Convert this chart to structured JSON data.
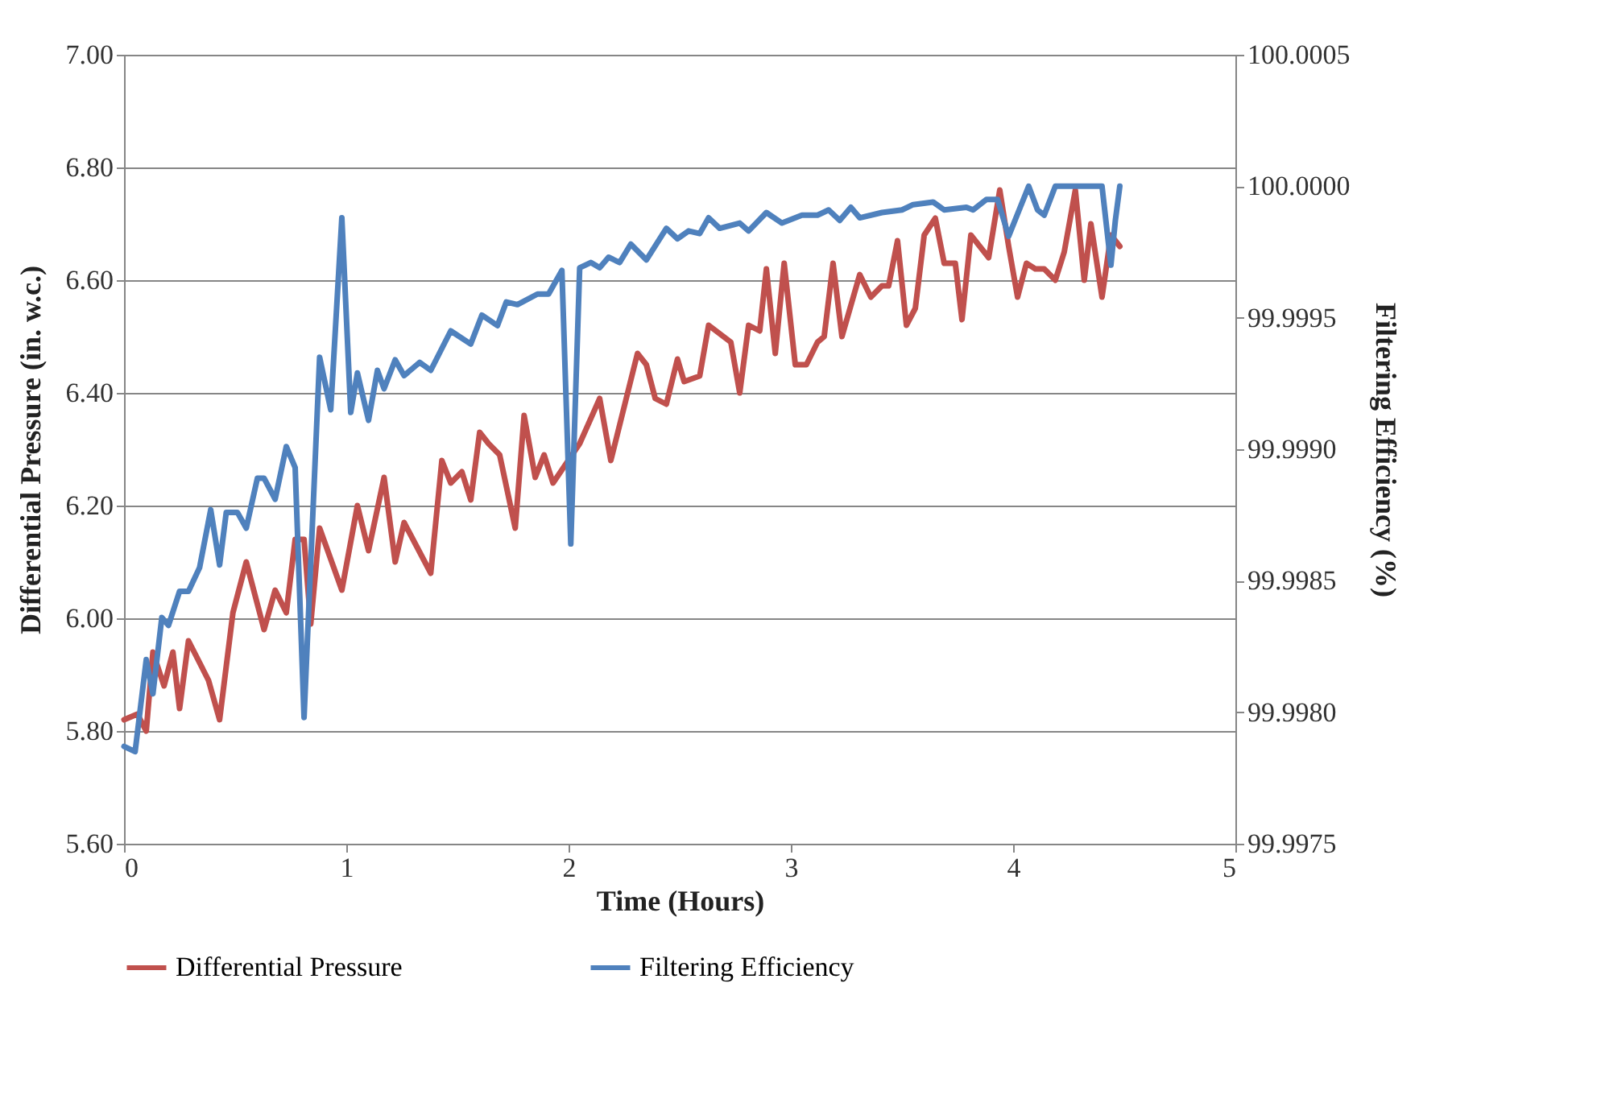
{
  "chart_data": {
    "type": "line",
    "xlabel": "Time (Hours)",
    "ylabel": "Differential Pressure (in. w.c.)",
    "y2label": "Filtering Efficiency (%)",
    "xlim": [
      0,
      5
    ],
    "xticks": [
      0,
      1,
      2,
      3,
      4,
      5
    ],
    "ylim": [
      5.6,
      7.0
    ],
    "yticks": [
      {
        "value": 5.6,
        "label": "5.60"
      },
      {
        "value": 5.8,
        "label": "5.80"
      },
      {
        "value": 6.0,
        "label": "6.00"
      },
      {
        "value": 6.2,
        "label": "6.20"
      },
      {
        "value": 6.4,
        "label": "6.40"
      },
      {
        "value": 6.6,
        "label": "6.60"
      },
      {
        "value": 6.8,
        "label": "6.80"
      },
      {
        "value": 7.0,
        "label": "7.00"
      }
    ],
    "y2lim": [
      99.9975,
      100.0005
    ],
    "y2ticks": [
      99.9975,
      {
        "value": 99.998,
        "label": "99.9980"
      },
      99.9985,
      {
        "value": 99.999,
        "label": "99.9990"
      },
      99.9995,
      {
        "value": 100.0,
        "label": "100.0000"
      },
      100.0005
    ],
    "grid": "y",
    "legend": "bottom",
    "series": [
      {
        "name": "Differential Pressure",
        "color": "#c0504d",
        "x": [
          0.0,
          0.06,
          0.1,
          0.13,
          0.18,
          0.22,
          0.25,
          0.29,
          0.38,
          0.43,
          0.49,
          0.55,
          0.63,
          0.68,
          0.73,
          0.77,
          0.81,
          0.84,
          0.88,
          0.98,
          1.05,
          1.1,
          1.17,
          1.22,
          1.26,
          1.38,
          1.43,
          1.47,
          1.52,
          1.56,
          1.6,
          1.64,
          1.69,
          1.76,
          1.8,
          1.85,
          1.89,
          1.93,
          2.05,
          2.14,
          2.19,
          2.31,
          2.35,
          2.39,
          2.44,
          2.49,
          2.52,
          2.59,
          2.63,
          2.73,
          2.77,
          2.81,
          2.86,
          2.89,
          2.93,
          2.97,
          3.02,
          3.07,
          3.12,
          3.15,
          3.19,
          3.23,
          3.31,
          3.36,
          3.41,
          3.44,
          3.48,
          3.52,
          3.56,
          3.6,
          3.65,
          3.69,
          3.74,
          3.77,
          3.81,
          3.85,
          3.89,
          3.94,
          3.98,
          4.02,
          4.06,
          4.1,
          4.14,
          4.19,
          4.23,
          4.28,
          4.32,
          4.35,
          4.4,
          4.44,
          4.48
        ],
        "values": [
          5.82,
          5.83,
          5.8,
          5.94,
          5.88,
          5.94,
          5.84,
          5.96,
          5.89,
          5.82,
          6.01,
          6.1,
          5.98,
          6.05,
          6.01,
          6.14,
          6.14,
          5.99,
          6.16,
          6.05,
          6.2,
          6.12,
          6.25,
          6.1,
          6.17,
          6.08,
          6.28,
          6.24,
          6.26,
          6.21,
          6.33,
          6.31,
          6.29,
          6.16,
          6.36,
          6.25,
          6.29,
          6.24,
          6.31,
          6.39,
          6.28,
          6.47,
          6.45,
          6.39,
          6.38,
          6.46,
          6.42,
          6.43,
          6.52,
          6.49,
          6.4,
          6.52,
          6.51,
          6.62,
          6.47,
          6.63,
          6.45,
          6.45,
          6.49,
          6.5,
          6.63,
          6.5,
          6.61,
          6.57,
          6.59,
          6.59,
          6.67,
          6.52,
          6.55,
          6.68,
          6.71,
          6.63,
          6.63,
          6.53,
          6.68,
          6.66,
          6.64,
          6.76,
          6.66,
          6.57,
          6.63,
          6.62,
          6.62,
          6.6,
          6.65,
          6.76,
          6.6,
          6.7,
          6.57,
          6.68,
          6.66
        ]
      },
      {
        "name": "Filtering Efficiency",
        "color": "#4f81bd",
        "axis": "y2",
        "x": [
          0.0,
          0.05,
          0.1,
          0.13,
          0.17,
          0.2,
          0.25,
          0.29,
          0.34,
          0.39,
          0.43,
          0.46,
          0.51,
          0.55,
          0.6,
          0.63,
          0.68,
          0.73,
          0.77,
          0.81,
          0.88,
          0.93,
          0.98,
          1.02,
          1.05,
          1.1,
          1.14,
          1.17,
          1.22,
          1.26,
          1.33,
          1.38,
          1.47,
          1.56,
          1.61,
          1.68,
          1.72,
          1.77,
          1.86,
          1.91,
          1.97,
          2.01,
          2.05,
          2.1,
          2.14,
          2.18,
          2.23,
          2.28,
          2.35,
          2.44,
          2.49,
          2.54,
          2.59,
          2.63,
          2.68,
          2.77,
          2.81,
          2.89,
          2.96,
          3.05,
          3.12,
          3.17,
          3.22,
          3.27,
          3.31,
          3.41,
          3.5,
          3.55,
          3.64,
          3.69,
          3.79,
          3.82,
          3.88,
          3.93,
          3.98,
          4.07,
          4.11,
          4.14,
          4.19,
          4.4,
          4.44,
          4.46,
          4.48
        ],
        "values": [
          99.99787,
          99.99785,
          99.9982,
          99.99807,
          99.99836,
          99.99833,
          99.99846,
          99.99846,
          99.99855,
          99.99877,
          99.99856,
          99.99876,
          99.99876,
          99.9987,
          99.99889,
          99.99889,
          99.99881,
          99.99901,
          99.99893,
          99.99798,
          99.99935,
          99.99915,
          99.99988,
          99.99914,
          99.99929,
          99.99911,
          99.9993,
          99.99923,
          99.99934,
          99.99928,
          99.99933,
          99.9993,
          99.99945,
          99.9994,
          99.99951,
          99.99947,
          99.99956,
          99.99955,
          99.99959,
          99.99959,
          99.99968,
          99.99864,
          99.99969,
          99.99971,
          99.99969,
          99.99973,
          99.99971,
          99.99978,
          99.99972,
          99.99984,
          99.9998,
          99.99983,
          99.99982,
          99.99988,
          99.99984,
          99.99986,
          99.99983,
          99.9999,
          99.99986,
          99.99989,
          99.99989,
          99.99991,
          99.99987,
          99.99992,
          99.99988,
          99.9999,
          99.99991,
          99.99993,
          99.99994,
          99.99991,
          99.99992,
          99.99991,
          99.99995,
          99.99995,
          99.99981,
          100.0,
          99.99991,
          99.99989,
          100.0,
          100.0,
          99.9997,
          99.99987,
          100.0
        ]
      }
    ]
  }
}
